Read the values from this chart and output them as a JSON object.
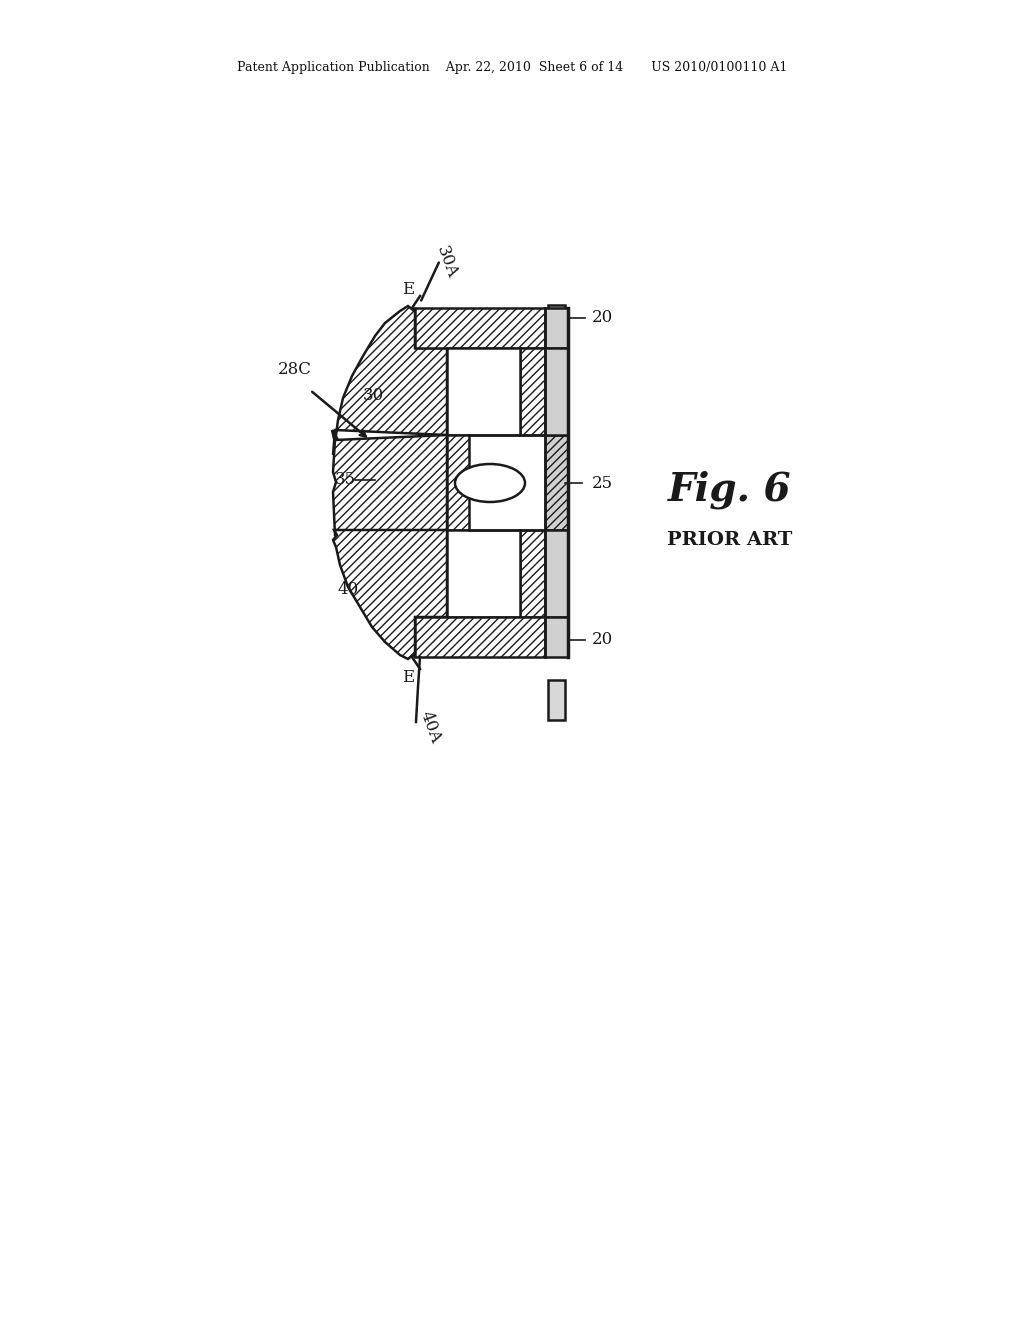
{
  "bg_color": "#ffffff",
  "line_color": "#1a1a1a",
  "header_text": "Patent Application Publication    Apr. 22, 2010  Sheet 6 of 14       US 2010/0100110 A1",
  "fig_label": "Fig. 6",
  "fig_sublabel": "PRIOR ART"
}
